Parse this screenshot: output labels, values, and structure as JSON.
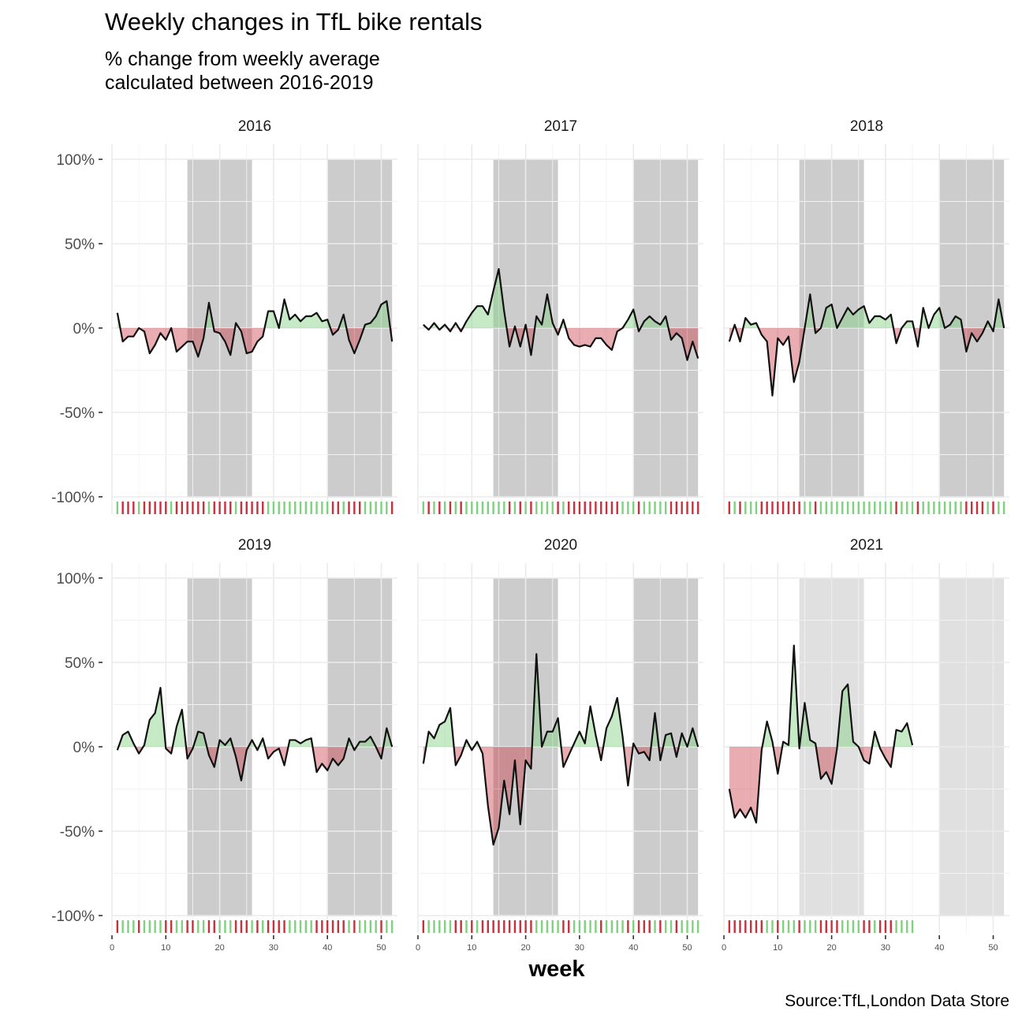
{
  "title": "Weekly changes in TfL bike rentals",
  "subtitle": [
    "% change from weekly average",
    "calculated between 2016-2019"
  ],
  "caption": "Source:TfL,London Data Store",
  "chart_data": {
    "type": "area",
    "xlabel": "week",
    "ylabel": "",
    "xlim": [
      0,
      53
    ],
    "ylim": [
      -100,
      100
    ],
    "y_ticks": [
      "100%",
      "50%",
      "0%",
      "-50%",
      "-100%"
    ],
    "y_tick_values": [
      100,
      50,
      0,
      -50,
      -100
    ],
    "x_ticks": [
      0,
      10,
      20,
      30,
      40,
      50
    ],
    "shaded_week_ranges": [
      [
        14,
        26
      ],
      [
        40,
        52
      ]
    ],
    "colors": {
      "positive": "#7fd17f",
      "negative": "#c8303c",
      "shade_full": "#cccccc",
      "shade_partial": "#e0e0e0"
    },
    "panels": [
      {
        "label": "2016",
        "values": [
          9,
          -8,
          -5,
          -5,
          0,
          -2,
          -15,
          -10,
          -3,
          -7,
          0,
          -14,
          -11,
          -8,
          -8,
          -17,
          -6,
          15,
          -2,
          -3,
          -8,
          -16,
          3,
          -2,
          -15,
          -14,
          -8,
          -5,
          10,
          10,
          0,
          17,
          5,
          8,
          4,
          7,
          7,
          9,
          4,
          5,
          -4,
          -1,
          8,
          -7,
          -15,
          -7,
          2,
          3,
          7,
          14,
          16,
          -8
        ]
      },
      {
        "label": "2017",
        "values": [
          2,
          -1,
          3,
          -1,
          2,
          -2,
          3,
          -2,
          4,
          9,
          13,
          13,
          8,
          22,
          35,
          10,
          -11,
          1,
          -11,
          2,
          -16,
          7,
          2,
          20,
          3,
          -4,
          5,
          -6,
          -10,
          -11,
          -10,
          -11,
          -6,
          -6,
          -10,
          -13,
          -2,
          0,
          5,
          11,
          -2,
          4,
          7,
          4,
          2,
          7,
          -7,
          -3,
          -6,
          -19,
          -8,
          -18
        ]
      },
      {
        "label": "2018",
        "values": [
          -8,
          2,
          -8,
          6,
          2,
          3,
          -4,
          -8,
          -40,
          -6,
          -10,
          -5,
          -32,
          -20,
          0,
          20,
          -3,
          0,
          12,
          14,
          0,
          6,
          12,
          8,
          11,
          13,
          3,
          7,
          7,
          5,
          8,
          -9,
          0,
          4,
          4,
          -11,
          12,
          0,
          8,
          12,
          0,
          2,
          7,
          5,
          -14,
          -3,
          -8,
          -3,
          4,
          -2,
          17,
          0
        ]
      },
      {
        "label": "2019",
        "values": [
          -2,
          7,
          9,
          2,
          -4,
          1,
          16,
          20,
          35,
          -1,
          -4,
          12,
          22,
          -7,
          -1,
          9,
          8,
          -5,
          -12,
          4,
          1,
          5,
          -6,
          -20,
          -2,
          4,
          -2,
          5,
          -7,
          -3,
          -1,
          -11,
          4,
          4,
          2,
          4,
          5,
          -15,
          -10,
          -14,
          -7,
          -11,
          -7,
          5,
          -2,
          3,
          3,
          6,
          0,
          -7,
          11,
          0
        ]
      },
      {
        "label": "2020",
        "values": [
          -10,
          9,
          5,
          13,
          15,
          23,
          -11,
          -5,
          4,
          -2,
          3,
          -4,
          -35,
          -58,
          -48,
          -20,
          -40,
          -8,
          -46,
          -8,
          -13,
          55,
          0,
          9,
          9,
          17,
          -12,
          -5,
          2,
          9,
          2,
          24,
          7,
          -8,
          11,
          18,
          29,
          6,
          -23,
          2,
          -4,
          -3,
          -8,
          20,
          -8,
          7,
          8,
          -6,
          8,
          0,
          11,
          0
        ]
      },
      {
        "label": "2021",
        "values": [
          -25,
          -42,
          -37,
          -42,
          -36,
          -45,
          -2,
          15,
          3,
          -16,
          3,
          1,
          60,
          -1,
          26,
          4,
          2,
          -19,
          -15,
          -22,
          -1,
          33,
          37,
          3,
          0,
          -8,
          -10,
          9,
          -1,
          -7,
          -12,
          10,
          9,
          14,
          1
        ]
      }
    ]
  }
}
